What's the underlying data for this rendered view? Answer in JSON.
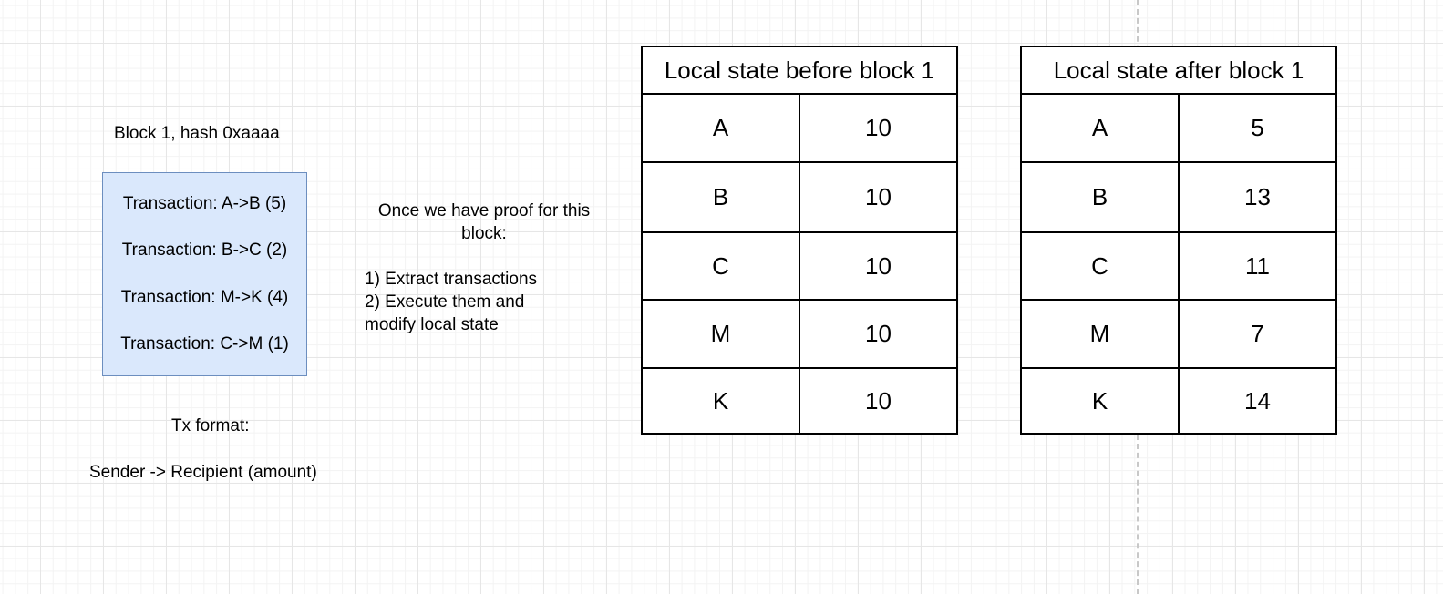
{
  "block": {
    "title": "Block 1, hash 0xaaaa",
    "transactions": [
      "Transaction: A->B (5)",
      "Transaction: B->C (2)",
      "Transaction: M->K (4)",
      "Transaction: C->M (1)"
    ]
  },
  "tx_format": {
    "title": "Tx format:",
    "format": "Sender -> Recipient (amount)"
  },
  "note": {
    "line1": "Once we have proof for this",
    "line2": "block:",
    "step1": "1) Extract transactions",
    "step2a": "2) Execute them and",
    "step2b": "modify local state"
  },
  "before_table": {
    "title": "Local state before block 1",
    "rows": [
      {
        "key": "A",
        "value": "10"
      },
      {
        "key": "B",
        "value": "10"
      },
      {
        "key": "C",
        "value": "10"
      },
      {
        "key": "M",
        "value": "10"
      },
      {
        "key": "K",
        "value": "10"
      }
    ]
  },
  "after_table": {
    "title": "Local state after block 1",
    "rows": [
      {
        "key": "A",
        "value": "5"
      },
      {
        "key": "B",
        "value": "13"
      },
      {
        "key": "C",
        "value": "11"
      },
      {
        "key": "M",
        "value": "7"
      },
      {
        "key": "K",
        "value": "14"
      }
    ]
  }
}
